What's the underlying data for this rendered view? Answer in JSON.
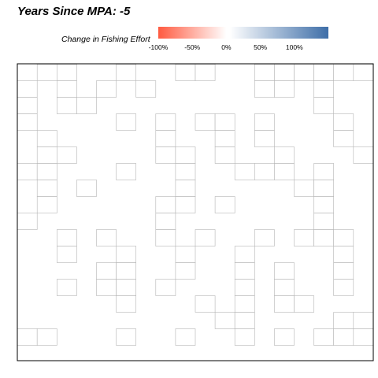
{
  "title": "Years Since MPA: -5",
  "legend": {
    "title": "Change in Fishing Effort",
    "colors": {
      "low": "#ff5a40",
      "mid": "#ffffff",
      "high": "#3e6ea8"
    }
  },
  "chart_data": {
    "type": "heatmap",
    "title": "Years Since MPA: -5",
    "grid": {
      "cols": 18,
      "rows": 17
    },
    "color_scale": {
      "label": "Change in Fishing Effort",
      "ticks": [
        "-100%",
        "-50%",
        "0%",
        "50%",
        "100%"
      ],
      "tick_values": [
        -100,
        -50,
        0,
        50,
        100
      ],
      "range": [
        -100,
        150
      ]
    },
    "cells": [
      [
        1,
        0,
        0
      ],
      [
        2,
        0,
        0
      ],
      [
        5,
        0,
        0
      ],
      [
        8,
        0,
        0
      ],
      [
        9,
        0,
        0
      ],
      [
        12,
        0,
        0
      ],
      [
        13,
        0,
        0
      ],
      [
        14,
        0,
        0
      ],
      [
        15,
        0,
        0
      ],
      [
        16,
        0,
        0
      ],
      [
        17,
        0,
        0
      ],
      [
        0,
        1,
        0
      ],
      [
        2,
        1,
        0
      ],
      [
        4,
        1,
        0
      ],
      [
        6,
        1,
        0
      ],
      [
        12,
        1,
        0
      ],
      [
        13,
        1,
        0
      ],
      [
        15,
        1,
        0
      ],
      [
        0,
        2,
        0
      ],
      [
        2,
        2,
        0
      ],
      [
        3,
        2,
        0
      ],
      [
        15,
        2,
        0
      ],
      [
        0,
        3,
        0
      ],
      [
        5,
        3,
        0
      ],
      [
        7,
        3,
        0
      ],
      [
        9,
        3,
        0
      ],
      [
        10,
        3,
        0
      ],
      [
        12,
        3,
        0
      ],
      [
        16,
        3,
        0
      ],
      [
        1,
        4,
        0
      ],
      [
        7,
        4,
        0
      ],
      [
        10,
        4,
        0
      ],
      [
        12,
        4,
        0
      ],
      [
        16,
        4,
        0
      ],
      [
        1,
        5,
        0
      ],
      [
        2,
        5,
        0
      ],
      [
        7,
        5,
        0
      ],
      [
        8,
        5,
        0
      ],
      [
        10,
        5,
        0
      ],
      [
        13,
        5,
        0
      ],
      [
        17,
        5,
        0
      ],
      [
        0,
        6,
        0
      ],
      [
        1,
        6,
        0
      ],
      [
        5,
        6,
        0
      ],
      [
        8,
        6,
        0
      ],
      [
        11,
        6,
        0
      ],
      [
        12,
        6,
        0
      ],
      [
        13,
        6,
        0
      ],
      [
        15,
        6,
        0
      ],
      [
        1,
        7,
        0
      ],
      [
        3,
        7,
        0
      ],
      [
        8,
        7,
        0
      ],
      [
        14,
        7,
        0
      ],
      [
        15,
        7,
        0
      ],
      [
        1,
        8,
        0
      ],
      [
        7,
        8,
        0
      ],
      [
        8,
        8,
        0
      ],
      [
        10,
        8,
        0
      ],
      [
        15,
        8,
        0
      ],
      [
        0,
        9,
        0
      ],
      [
        7,
        9,
        0
      ],
      [
        15,
        9,
        0
      ],
      [
        2,
        10,
        0
      ],
      [
        4,
        10,
        0
      ],
      [
        7,
        10,
        0
      ],
      [
        9,
        10,
        0
      ],
      [
        12,
        10,
        0
      ],
      [
        14,
        10,
        0
      ],
      [
        15,
        10,
        0
      ],
      [
        16,
        10,
        0
      ],
      [
        2,
        11,
        0
      ],
      [
        5,
        11,
        0
      ],
      [
        8,
        11,
        0
      ],
      [
        11,
        11,
        0
      ],
      [
        16,
        11,
        0
      ],
      [
        4,
        12,
        0
      ],
      [
        5,
        12,
        0
      ],
      [
        8,
        12,
        0
      ],
      [
        11,
        12,
        0
      ],
      [
        13,
        12,
        0
      ],
      [
        16,
        12,
        0
      ],
      [
        2,
        13,
        0
      ],
      [
        4,
        13,
        0
      ],
      [
        5,
        13,
        0
      ],
      [
        7,
        13,
        0
      ],
      [
        11,
        13,
        0
      ],
      [
        13,
        13,
        0
      ],
      [
        16,
        13,
        0
      ],
      [
        5,
        14,
        0
      ],
      [
        9,
        14,
        0
      ],
      [
        11,
        14,
        0
      ],
      [
        13,
        14,
        0
      ],
      [
        14,
        14,
        0
      ],
      [
        10,
        15,
        0
      ],
      [
        11,
        15,
        0
      ],
      [
        16,
        15,
        0
      ],
      [
        17,
        15,
        0
      ],
      [
        0,
        16,
        0
      ],
      [
        1,
        16,
        0
      ],
      [
        5,
        16,
        0
      ],
      [
        8,
        16,
        0
      ],
      [
        11,
        16,
        0
      ],
      [
        13,
        16,
        0
      ],
      [
        15,
        16,
        0
      ],
      [
        16,
        16,
        0
      ],
      [
        17,
        16,
        0
      ]
    ]
  }
}
